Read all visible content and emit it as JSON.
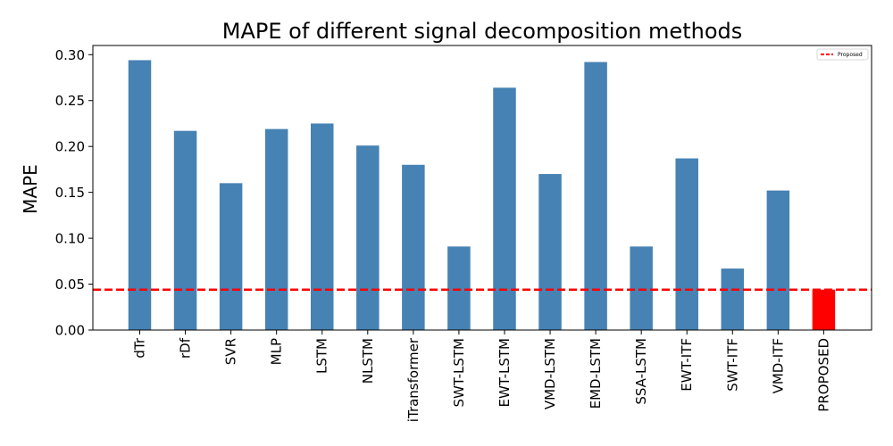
{
  "chart_data": {
    "type": "bar",
    "title": "MAPE of different signal decomposition methods",
    "xlabel": "",
    "ylabel": "MAPE",
    "categories": [
      "dTr",
      "rDf",
      "SVR",
      "MLP",
      "LSTM",
      "NLSTM",
      "iTransformer",
      "SWT-LSTM",
      "EWT-LSTM",
      "VMD-LSTM",
      "EMD-LSTM",
      "SSA-LSTM",
      "EWT-ITF",
      "SWT-ITF",
      "VMD-ITF",
      "PROPOSED"
    ],
    "values": [
      0.294,
      0.217,
      0.16,
      0.219,
      0.225,
      0.201,
      0.18,
      0.091,
      0.264,
      0.17,
      0.292,
      0.091,
      0.187,
      0.067,
      0.152,
      0.044
    ],
    "bar_colors": [
      "#4682b4",
      "#4682b4",
      "#4682b4",
      "#4682b4",
      "#4682b4",
      "#4682b4",
      "#4682b4",
      "#4682b4",
      "#4682b4",
      "#4682b4",
      "#4682b4",
      "#4682b4",
      "#4682b4",
      "#4682b4",
      "#4682b4",
      "#ff0000"
    ],
    "ylim": [
      0,
      0.31
    ],
    "yticks": [
      0.0,
      0.05,
      0.1,
      0.15,
      0.2,
      0.25,
      0.3
    ],
    "ytick_labels": [
      "0.00",
      "0.05",
      "0.10",
      "0.15",
      "0.20",
      "0.25",
      "0.30"
    ],
    "reference_line": {
      "value": 0.044,
      "color": "#ff0000",
      "style": "dashed",
      "label": "Proposed"
    },
    "legend": {
      "position": "top-right",
      "entries": [
        "Proposed"
      ]
    },
    "grid": false
  }
}
